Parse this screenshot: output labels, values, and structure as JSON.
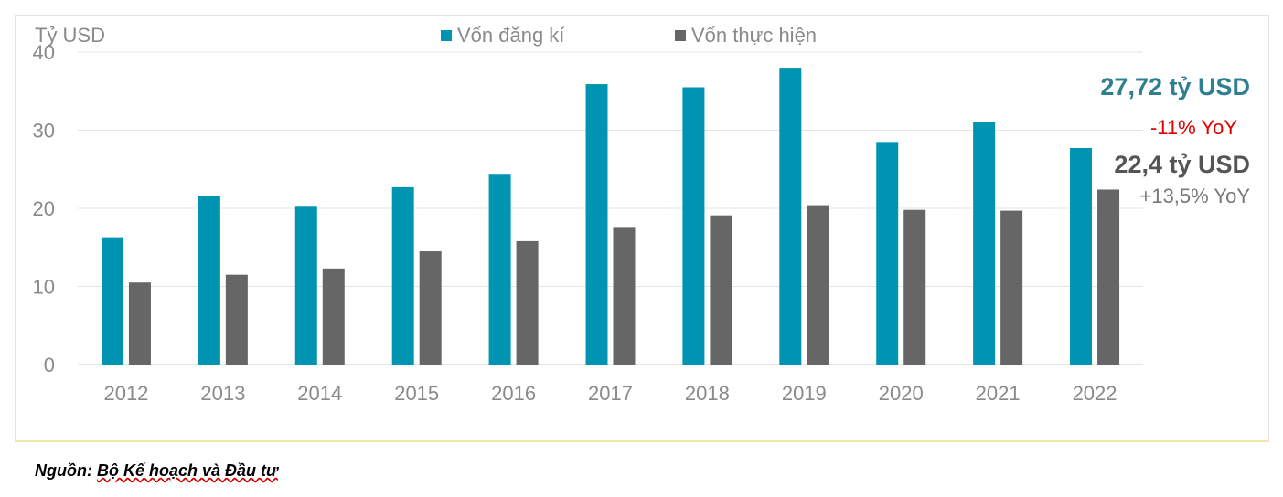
{
  "chart_data": {
    "type": "bar",
    "unit_label": "Tỷ USD",
    "categories": [
      "2012",
      "2013",
      "2014",
      "2015",
      "2016",
      "2017",
      "2018",
      "2019",
      "2020",
      "2021",
      "2022"
    ],
    "series": [
      {
        "name": "Vốn đăng kí",
        "color": "#0094b3",
        "values": [
          16.3,
          21.6,
          20.2,
          22.7,
          24.3,
          35.9,
          35.5,
          38.0,
          28.5,
          31.1,
          27.72
        ]
      },
      {
        "name": "Vốn thực hiện",
        "color": "#666666",
        "values": [
          10.5,
          11.5,
          12.3,
          14.5,
          15.8,
          17.5,
          19.1,
          20.4,
          19.8,
          19.7,
          22.4
        ]
      }
    ],
    "ylim": [
      0,
      40
    ],
    "yticks": [
      0,
      10,
      20,
      30,
      40
    ],
    "grid": true,
    "legend_position": "top-center",
    "annotations": {
      "registered_value": "27,72 tỷ USD",
      "registered_yoy": "-11% YoY",
      "implemented_value": "22,4 tỷ USD",
      "implemented_yoy": "+13,5% YoY"
    }
  },
  "source": {
    "prefix": "Nguồn: ",
    "text": "Bộ Kế hoạch và Đầu tư"
  }
}
